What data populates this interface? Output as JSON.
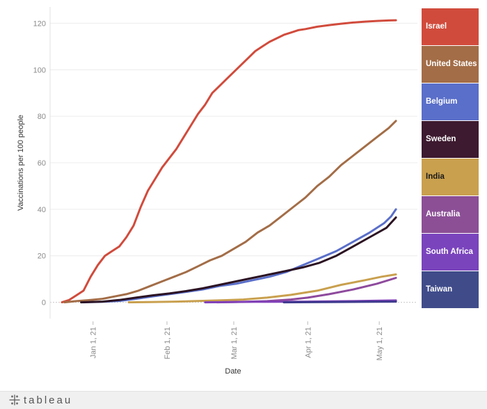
{
  "chart_data": {
    "type": "line",
    "xlabel": "Date",
    "ylabel": "Vaccinations per 100 people",
    "ylim": [
      -7,
      127
    ],
    "y_ticks": [
      0,
      20,
      40,
      60,
      80,
      100,
      120
    ],
    "x_range": [
      "2020-12-14",
      "2021-05-17"
    ],
    "x_ticks": [
      {
        "label": "Jan 1, 21",
        "date": "2021-01-01"
      },
      {
        "label": "Feb 1, 21",
        "date": "2021-02-01"
      },
      {
        "label": "Mar 1, 21",
        "date": "2021-03-01"
      },
      {
        "label": "Apr 1, 21",
        "date": "2021-04-01"
      },
      {
        "label": "May 1, 21",
        "date": "2021-05-01"
      }
    ],
    "grid": true,
    "legend_position": "right",
    "series": [
      {
        "name": "Israel",
        "color": "#d14b3c",
        "points": [
          [
            "2020-12-19",
            0
          ],
          [
            "2020-12-22",
            1
          ],
          [
            "2020-12-25",
            3
          ],
          [
            "2020-12-28",
            5
          ],
          [
            "2020-12-31",
            11
          ],
          [
            "2021-01-03",
            16
          ],
          [
            "2021-01-06",
            20
          ],
          [
            "2021-01-09",
            22
          ],
          [
            "2021-01-12",
            24
          ],
          [
            "2021-01-15",
            28
          ],
          [
            "2021-01-18",
            33
          ],
          [
            "2021-01-21",
            41
          ],
          [
            "2021-01-24",
            48
          ],
          [
            "2021-01-27",
            53
          ],
          [
            "2021-01-30",
            58
          ],
          [
            "2021-02-02",
            62
          ],
          [
            "2021-02-05",
            66
          ],
          [
            "2021-02-08",
            71
          ],
          [
            "2021-02-11",
            76
          ],
          [
            "2021-02-14",
            81
          ],
          [
            "2021-02-17",
            85
          ],
          [
            "2021-02-20",
            90
          ],
          [
            "2021-02-23",
            93
          ],
          [
            "2021-02-26",
            96
          ],
          [
            "2021-03-01",
            99
          ],
          [
            "2021-03-04",
            102
          ],
          [
            "2021-03-07",
            105
          ],
          [
            "2021-03-10",
            108
          ],
          [
            "2021-03-13",
            110
          ],
          [
            "2021-03-16",
            112
          ],
          [
            "2021-03-19",
            113.5
          ],
          [
            "2021-03-22",
            115
          ],
          [
            "2021-03-25",
            116
          ],
          [
            "2021-03-28",
            117
          ],
          [
            "2021-03-31",
            117.5
          ],
          [
            "2021-04-05",
            118.5
          ],
          [
            "2021-04-10",
            119.2
          ],
          [
            "2021-04-15",
            119.8
          ],
          [
            "2021-04-20",
            120.3
          ],
          [
            "2021-04-25",
            120.7
          ],
          [
            "2021-04-30",
            121
          ],
          [
            "2021-05-05",
            121.2
          ],
          [
            "2021-05-08",
            121.3
          ]
        ]
      },
      {
        "name": "United States",
        "color": "#a36d47",
        "points": [
          [
            "2020-12-20",
            0
          ],
          [
            "2020-12-25",
            0.5
          ],
          [
            "2020-12-31",
            1
          ],
          [
            "2021-01-05",
            1.5
          ],
          [
            "2021-01-10",
            2.5
          ],
          [
            "2021-01-15",
            3.5
          ],
          [
            "2021-01-20",
            5
          ],
          [
            "2021-01-25",
            7
          ],
          [
            "2021-01-30",
            9
          ],
          [
            "2021-02-04",
            11
          ],
          [
            "2021-02-09",
            13
          ],
          [
            "2021-02-14",
            15.5
          ],
          [
            "2021-02-19",
            18
          ],
          [
            "2021-02-24",
            20
          ],
          [
            "2021-03-01",
            23
          ],
          [
            "2021-03-06",
            26
          ],
          [
            "2021-03-11",
            30
          ],
          [
            "2021-03-16",
            33
          ],
          [
            "2021-03-21",
            37
          ],
          [
            "2021-03-26",
            41
          ],
          [
            "2021-03-31",
            45
          ],
          [
            "2021-04-05",
            50
          ],
          [
            "2021-04-10",
            54
          ],
          [
            "2021-04-15",
            59
          ],
          [
            "2021-04-20",
            63
          ],
          [
            "2021-04-25",
            67
          ],
          [
            "2021-04-30",
            71
          ],
          [
            "2021-05-05",
            75
          ],
          [
            "2021-05-08",
            78
          ]
        ]
      },
      {
        "name": "Belgium",
        "color": "#5a6fc9",
        "points": [
          [
            "2020-12-28",
            0
          ],
          [
            "2021-01-05",
            0.2
          ],
          [
            "2021-01-12",
            0.6
          ],
          [
            "2021-01-19",
            1.5
          ],
          [
            "2021-01-26",
            2.5
          ],
          [
            "2021-02-02",
            3.5
          ],
          [
            "2021-02-09",
            4.5
          ],
          [
            "2021-02-16",
            5.5
          ],
          [
            "2021-02-23",
            7
          ],
          [
            "2021-03-02",
            8
          ],
          [
            "2021-03-09",
            9.5
          ],
          [
            "2021-03-16",
            11
          ],
          [
            "2021-03-23",
            13
          ],
          [
            "2021-03-30",
            16
          ],
          [
            "2021-04-06",
            19
          ],
          [
            "2021-04-13",
            22
          ],
          [
            "2021-04-20",
            26
          ],
          [
            "2021-04-27",
            30
          ],
          [
            "2021-05-03",
            34
          ],
          [
            "2021-05-06",
            37
          ],
          [
            "2021-05-08",
            40
          ]
        ]
      },
      {
        "name": "Sweden",
        "color": "#2b1222",
        "points": [
          [
            "2020-12-27",
            0
          ],
          [
            "2021-01-05",
            0.3
          ],
          [
            "2021-01-12",
            1
          ],
          [
            "2021-01-19",
            2
          ],
          [
            "2021-01-26",
            3
          ],
          [
            "2021-02-02",
            3.8
          ],
          [
            "2021-02-09",
            4.8
          ],
          [
            "2021-02-16",
            6
          ],
          [
            "2021-02-23",
            7.5
          ],
          [
            "2021-03-02",
            9
          ],
          [
            "2021-03-09",
            10.5
          ],
          [
            "2021-03-16",
            12
          ],
          [
            "2021-03-23",
            13.5
          ],
          [
            "2021-03-30",
            15
          ],
          [
            "2021-04-06",
            17
          ],
          [
            "2021-04-13",
            20
          ],
          [
            "2021-04-20",
            24
          ],
          [
            "2021-04-27",
            28
          ],
          [
            "2021-05-04",
            32
          ],
          [
            "2021-05-08",
            36.5
          ]
        ]
      },
      {
        "name": "India",
        "color": "#c9a04e",
        "points": [
          [
            "2021-01-16",
            0
          ],
          [
            "2021-01-25",
            0.1
          ],
          [
            "2021-02-05",
            0.3
          ],
          [
            "2021-02-15",
            0.6
          ],
          [
            "2021-02-25",
            0.9
          ],
          [
            "2021-03-05",
            1.2
          ],
          [
            "2021-03-15",
            2
          ],
          [
            "2021-03-25",
            3.2
          ],
          [
            "2021-04-05",
            5
          ],
          [
            "2021-04-15",
            7.5
          ],
          [
            "2021-04-25",
            9.5
          ],
          [
            "2021-05-02",
            11
          ],
          [
            "2021-05-08",
            12
          ]
        ]
      },
      {
        "name": "Australia",
        "color": "#8e4a9d",
        "points": [
          [
            "2021-02-22",
            0
          ],
          [
            "2021-03-05",
            0.2
          ],
          [
            "2021-03-15",
            0.5
          ],
          [
            "2021-03-25",
            1.2
          ],
          [
            "2021-04-01",
            2
          ],
          [
            "2021-04-10",
            3.5
          ],
          [
            "2021-04-20",
            5.5
          ],
          [
            "2021-04-30",
            8
          ],
          [
            "2021-05-08",
            10.5
          ]
        ]
      },
      {
        "name": "South Africa",
        "color": "#8040b8",
        "points": [
          [
            "2021-02-17",
            0
          ],
          [
            "2021-03-10",
            0.2
          ],
          [
            "2021-04-01",
            0.3
          ],
          [
            "2021-04-20",
            0.5
          ],
          [
            "2021-05-08",
            0.8
          ]
        ]
      },
      {
        "name": "Taiwan",
        "color": "#3e3a8e",
        "points": [
          [
            "2021-03-22",
            0
          ],
          [
            "2021-04-10",
            0.1
          ],
          [
            "2021-04-25",
            0.2
          ],
          [
            "2021-05-08",
            0.3
          ]
        ]
      }
    ]
  },
  "legend": {
    "items": [
      {
        "label": "Israel",
        "bg": "#d14b3c",
        "color": "#ffffff"
      },
      {
        "label": "United States",
        "bg": "#a36d47",
        "color": "#ffffff"
      },
      {
        "label": "Belgium",
        "bg": "#5a6fc9",
        "color": "#ffffff"
      },
      {
        "label": "Sweden",
        "bg": "#3d1a2f",
        "color": "#ffffff"
      },
      {
        "label": "India",
        "bg": "#c9a04e",
        "color": "#1a1a1a"
      },
      {
        "label": "Australia",
        "bg": "#8c4f96",
        "color": "#ffffff"
      },
      {
        "label": "South Africa",
        "bg": "#7a44bd",
        "color": "#ffffff"
      },
      {
        "label": "Taiwan",
        "bg": "#404c8a",
        "color": "#ffffff"
      }
    ]
  },
  "footer": {
    "brand": "tableau",
    "icon": "tableau-logo-icon"
  }
}
